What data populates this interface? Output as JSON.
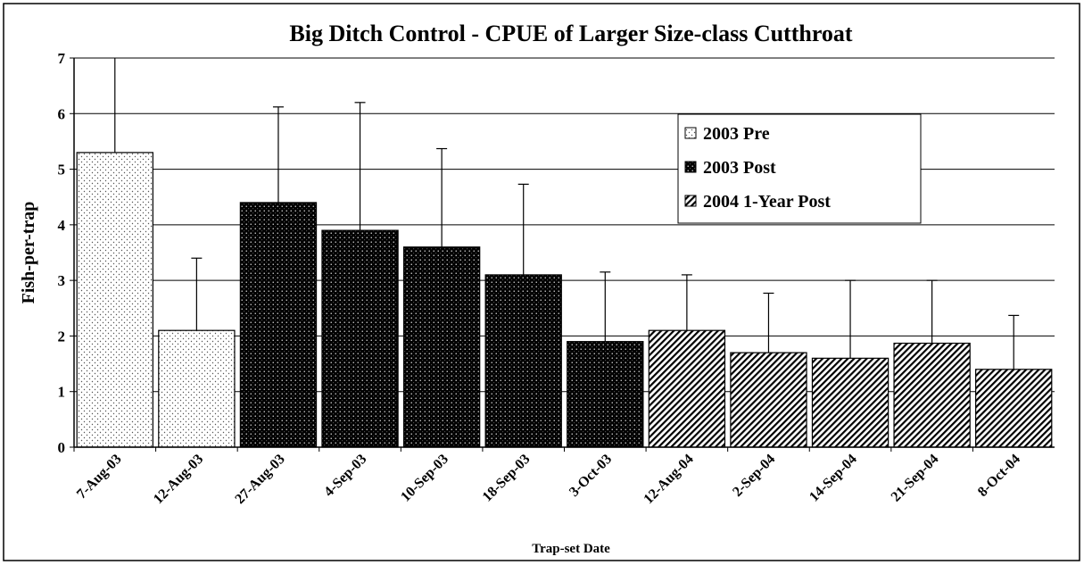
{
  "chart_data": {
    "type": "bar",
    "title": "Big Ditch Control - CPUE of Larger Size-class Cutthroat",
    "x_label": "Trap-set Date",
    "y_label": "Fish-per-trap",
    "categories": [
      "7-Aug-03",
      "12-Aug-03",
      "27-Aug-03",
      "4-Sep-03",
      "10-Sep-03",
      "18-Sep-03",
      "3-Oct-03",
      "12-Aug-04",
      "2-Sep-04",
      "14-Sep-04",
      "21-Sep-04",
      "8-Oct-04"
    ],
    "series": [
      {
        "name": "2003 Pre",
        "color": "#ffffff",
        "values": [
          5.3,
          2.1,
          null,
          null,
          null,
          null,
          null,
          null,
          null,
          null,
          null,
          null
        ],
        "errors": [
          1.87,
          1.3,
          null,
          null,
          null,
          null,
          null,
          null,
          null,
          null,
          null,
          null
        ]
      },
      {
        "name": "2003 Post",
        "color": "#000000",
        "values": [
          null,
          null,
          4.4,
          3.9,
          3.6,
          3.1,
          1.9,
          null,
          null,
          null,
          null,
          null
        ],
        "errors": [
          null,
          null,
          1.72,
          2.3,
          1.77,
          1.63,
          1.25,
          null,
          null,
          null,
          null,
          null
        ]
      },
      {
        "name": "2004 1-Year Post",
        "color": "#ffffff",
        "values": [
          null,
          null,
          null,
          null,
          null,
          null,
          null,
          2.1,
          1.7,
          1.6,
          1.87,
          1.4
        ],
        "errors": [
          null,
          null,
          null,
          null,
          null,
          null,
          null,
          1.0,
          1.07,
          1.4,
          1.13,
          0.97
        ]
      }
    ],
    "ylim": [
      0,
      7
    ],
    "yticks": [
      0,
      1,
      2,
      3,
      4,
      5,
      6,
      7
    ],
    "grid": true,
    "legend": "upper right"
  }
}
